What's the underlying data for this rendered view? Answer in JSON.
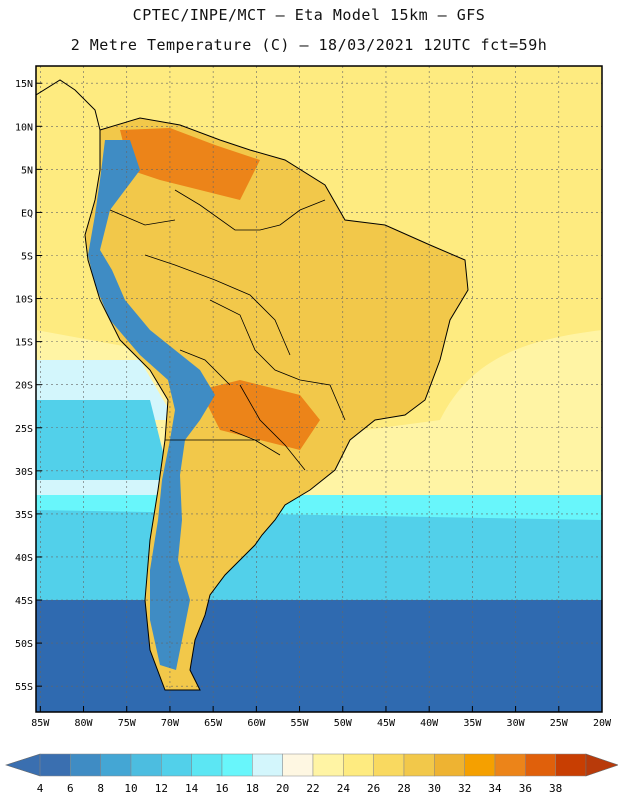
{
  "title_line1": "CPTEC/INPE/MCT –  Eta Model 15km – GFS",
  "title_line2": "2 Metre Temperature (C) – 18/03/2021 12UTC fct=59h",
  "lat_labels": [
    "15N",
    "10N",
    "5N",
    "EQ",
    "5S",
    "10S",
    "15S",
    "20S",
    "25S",
    "30S",
    "35S",
    "40S",
    "45S",
    "50S",
    "55S"
  ],
  "lat_values": [
    15,
    10,
    5,
    0,
    -5,
    -10,
    -15,
    -20,
    -25,
    -30,
    -35,
    -40,
    -45,
    -50,
    -55
  ],
  "lon_labels": [
    "85W",
    "80W",
    "75W",
    "70W",
    "65W",
    "60W",
    "55W",
    "50W",
    "45W",
    "40W",
    "35W",
    "30W",
    "25W",
    "20W"
  ],
  "lon_values": [
    -85,
    -80,
    -75,
    -70,
    -65,
    -60,
    -55,
    -50,
    -45,
    -40,
    -35,
    -30,
    -25,
    -20
  ],
  "extent": {
    "lon_min": -85.5,
    "lon_max": -20,
    "lat_min": -58,
    "lat_max": 17
  },
  "colorbar": {
    "labels": [
      "4",
      "6",
      "8",
      "10",
      "12",
      "14",
      "16",
      "18",
      "20",
      "22",
      "24",
      "26",
      "28",
      "30",
      "32",
      "34",
      "36",
      "38"
    ],
    "low_color": "#3a6fb0",
    "high_color": "#b83a0a",
    "colors": [
      "#3a6fb0",
      "#3f8cc4",
      "#44a6d4",
      "#4cbde0",
      "#52d0ea",
      "#5ce6f3",
      "#68f6fb",
      "#d3f6fc",
      "#fef7e2",
      "#fff4a4",
      "#feeb80",
      "#f9d960",
      "#f2c84a",
      "#eeb332",
      "#f5a000",
      "#ec8419",
      "#e0600b",
      "#c83e02"
    ]
  },
  "regions": {
    "cold_sea": "#2f6ab0",
    "cool_sea": "#52d0ea",
    "mid_sea": "#68f6fb",
    "pale_sea": "#d3f6fc",
    "warm_sea": "#fff4a4",
    "warmer_sea": "#feeb80",
    "hot_land": "#f2c84a",
    "hottest_land": "#ec8419",
    "andes": "#3f8cc4"
  }
}
